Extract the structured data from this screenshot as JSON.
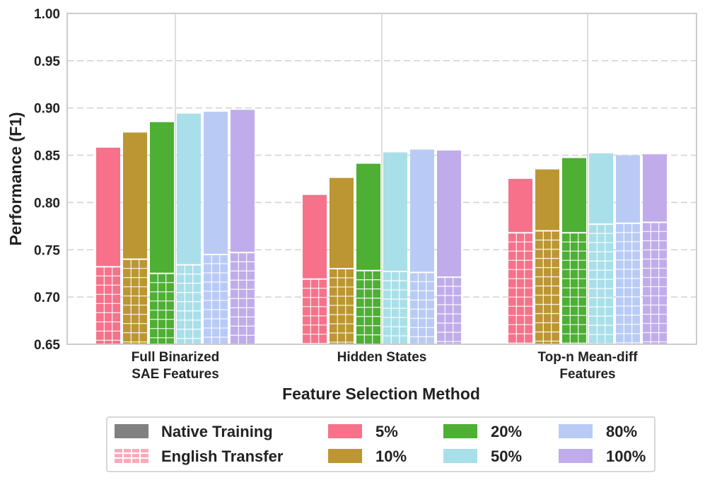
{
  "chart_data": {
    "type": "bar",
    "xlabel": "Feature Selection Method",
    "ylabel": "Performance (F1)",
    "ylim": [
      0.65,
      1.0
    ],
    "yticks": [
      "0.65",
      "0.70",
      "0.75",
      "0.80",
      "0.85",
      "0.90",
      "0.95",
      "1.00"
    ],
    "categories": [
      [
        "Full Binarized",
        "SAE Features"
      ],
      [
        "Hidden States"
      ],
      [
        "Top-n Mean-diff",
        "Features"
      ]
    ],
    "series": [
      {
        "name": "5%",
        "color": "#f7718a",
        "native": [
          0.858,
          0.808,
          0.825
        ],
        "english_transfer": [
          0.732,
          0.719,
          0.768
        ]
      },
      {
        "name": "10%",
        "color": "#bb9633",
        "native": [
          0.874,
          0.826,
          0.835
        ],
        "english_transfer": [
          0.74,
          0.73,
          0.77
        ]
      },
      {
        "name": "20%",
        "color": "#4daf33",
        "native": [
          0.885,
          0.841,
          0.847
        ],
        "english_transfer": [
          0.725,
          0.728,
          0.768
        ]
      },
      {
        "name": "50%",
        "color": "#a9dfe9",
        "native": [
          0.894,
          0.853,
          0.852
        ],
        "english_transfer": [
          0.734,
          0.727,
          0.777
        ]
      },
      {
        "name": "80%",
        "color": "#b9cbf5",
        "native": [
          0.896,
          0.856,
          0.85
        ],
        "english_transfer": [
          0.745,
          0.726,
          0.778
        ]
      },
      {
        "name": "100%",
        "color": "#c0acea",
        "native": [
          0.898,
          0.855,
          0.851
        ],
        "english_transfer": [
          0.747,
          0.721,
          0.779
        ]
      }
    ],
    "legend": {
      "placement": "bottom",
      "native_label": "Native Training",
      "transfer_label": "English Transfer"
    }
  }
}
